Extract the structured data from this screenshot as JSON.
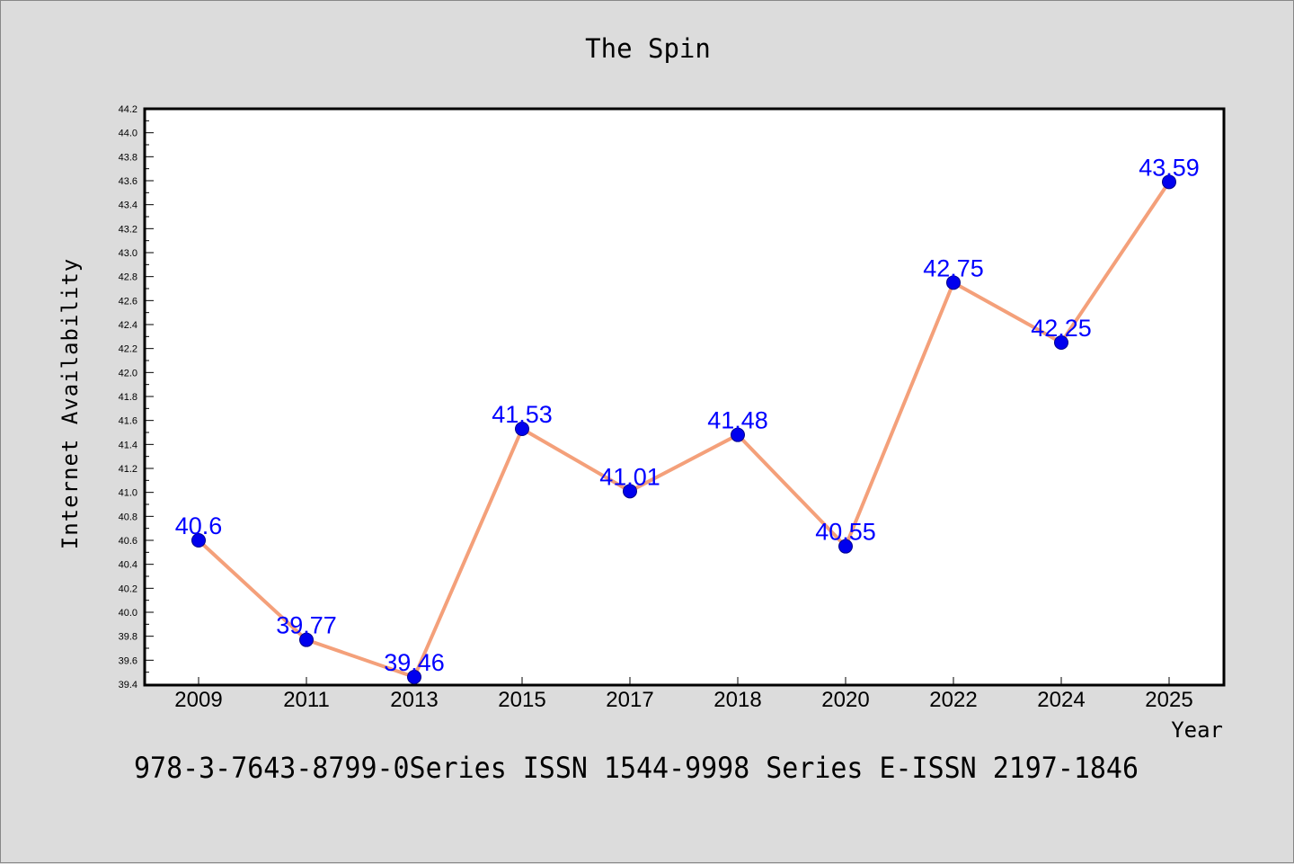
{
  "chart_data": {
    "type": "line",
    "title": "The Spin",
    "xlabel": "Year",
    "ylabel": "Internet Availability",
    "categories": [
      "2009",
      "2011",
      "2013",
      "2015",
      "2017",
      "2018",
      "2020",
      "2022",
      "2024",
      "2025"
    ],
    "series": [
      {
        "values": [
          40.6,
          39.77,
          39.46,
          41.53,
          41.01,
          41.48,
          40.55,
          42.75,
          42.25,
          43.59
        ],
        "labels": [
          "40.6",
          "39.77",
          "39.46",
          "41.53",
          "41.01",
          "41.48",
          "40.55",
          "42.75",
          "42.25",
          "43.59"
        ],
        "line_color": "#f4a07a",
        "marker_color": "#0000ee",
        "label_color": "#0000ff"
      }
    ],
    "ylim": [
      39.4,
      44.2
    ],
    "ytick_step": 0.2,
    "grid": false,
    "legend": "none"
  },
  "footer": "978-3-7643-8799-0Series ISSN 1544-9998 Series E-ISSN 2197-1846",
  "colors": {
    "background": "#dcdcdc",
    "plot_area": "#ffffff",
    "axes": "#000000"
  }
}
